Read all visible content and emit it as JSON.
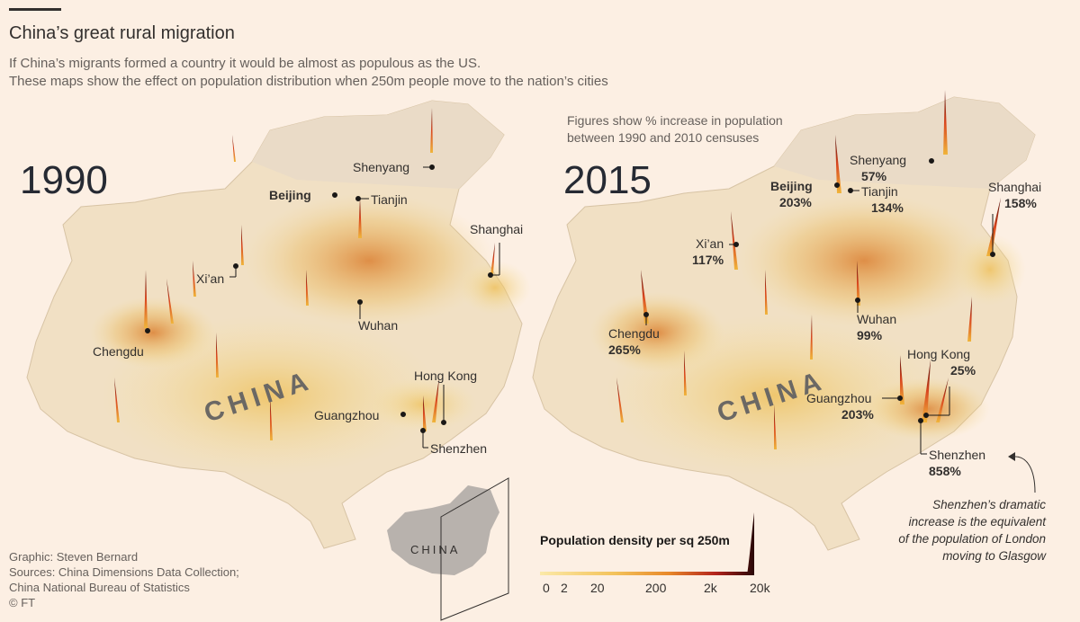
{
  "header": {
    "title": "China’s great rural migration",
    "subtitle_line1": "If China’s migrants formed a country it would be almost as populous as the US.",
    "subtitle_line2": "These maps show the effect on population distribution when 250m people move to the nation’s cities"
  },
  "note": {
    "line1": "Figures show % increase in population",
    "line2": "between 1990 and 2010 censuses"
  },
  "map_1990": {
    "year": "1990",
    "country_label": "CHINA",
    "cities": {
      "shenyang": "Shenyang",
      "beijing": "Beijing",
      "tianjin": "Tianjin",
      "xian": "Xi’an",
      "shanghai": "Shanghai",
      "chengdu": "Chengdu",
      "wuhan": "Wuhan",
      "hongkong": "Hong Kong",
      "guangzhou": "Guangzhou",
      "shenzhen": "Shenzhen"
    }
  },
  "map_2015": {
    "year": "2015",
    "country_label": "CHINA",
    "cities": {
      "shenyang": {
        "name": "Shenyang",
        "pct": "57%"
      },
      "beijing": {
        "name": "Beijing",
        "pct": "203%"
      },
      "tianjin": {
        "name": "Tianjin",
        "pct": "134%"
      },
      "xian": {
        "name": "Xi’an",
        "pct": "117%"
      },
      "shanghai": {
        "name": "Shanghai",
        "pct": "158%"
      },
      "chengdu": {
        "name": "Chengdu",
        "pct": "265%"
      },
      "wuhan": {
        "name": "Wuhan",
        "pct": "99%"
      },
      "hongkong": {
        "name": "Hong Kong",
        "pct": "25%"
      },
      "guangzhou": {
        "name": "Guangzhou",
        "pct": "203%"
      },
      "shenzhen": {
        "name": "Shenzhen",
        "pct": "858%"
      }
    }
  },
  "annotation": {
    "line1": "Shenzhen’s dramatic",
    "line2": "increase is the equivalent",
    "line3": "of the population of London",
    "line4": "moving to Glasgow"
  },
  "locator": {
    "label": "CHINA"
  },
  "legend": {
    "title": "Population density per sq 250m",
    "ticks": [
      "0",
      "2",
      "20",
      "200",
      "2k",
      "20k"
    ],
    "colors": {
      "low": "#fbe9a8",
      "mid": "#e8892a",
      "high": "#b3231c",
      "top": "#2a0808"
    }
  },
  "credits": {
    "graphic": "Graphic: Steven Bernard",
    "sources1": "Sources: China Dimensions Data Collection;",
    "sources2": "China National Bureau of Statistics",
    "copyright": "© FT"
  }
}
